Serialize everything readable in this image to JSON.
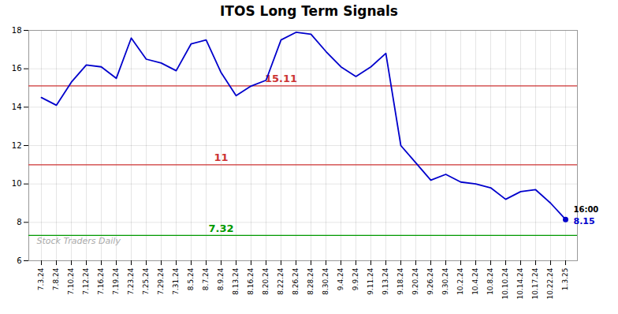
{
  "chart_data": {
    "type": "line",
    "title": "ITOS Long Term Signals",
    "categories": [
      "7.3.24",
      "7.8.24",
      "7.10.24",
      "7.12.24",
      "7.16.24",
      "7.19.24",
      "7.23.24",
      "7.25.24",
      "7.29.24",
      "7.31.24",
      "8.5.24",
      "8.7.24",
      "8.9.24",
      "8.13.24",
      "8.16.24",
      "8.20.24",
      "8.22.24",
      "8.26.24",
      "8.28.24",
      "8.30.24",
      "9.4.24",
      "9.9.24",
      "9.11.24",
      "9.13.24",
      "9.18.24",
      "9.20.24",
      "9.26.24",
      "9.30.24",
      "10.2.24",
      "10.4.24",
      "10.8.24",
      "10.10.24",
      "10.14.24",
      "10.17.24",
      "10.22.24",
      "1.3.25"
    ],
    "values": [
      14.5,
      14.1,
      15.3,
      16.2,
      16.1,
      15.5,
      17.6,
      16.5,
      16.3,
      15.9,
      17.3,
      17.5,
      15.8,
      14.6,
      15.1,
      15.4,
      17.5,
      17.9,
      17.8,
      16.9,
      16.1,
      15.6,
      16.1,
      16.8,
      12.0,
      11.1,
      10.2,
      10.5,
      10.1,
      10.0,
      9.8,
      9.2,
      9.6,
      9.7,
      9.0,
      8.15
    ],
    "color": "#0000cc",
    "ylim": [
      6,
      18
    ],
    "yticks": [
      6,
      8,
      10,
      12,
      14,
      16,
      18
    ],
    "grid": true,
    "hlines": [
      {
        "value": 15.11,
        "label": "15.11",
        "color": "#cc3333"
      },
      {
        "value": 11,
        "label": "11",
        "color": "#cc3333"
      },
      {
        "value": 7.32,
        "label": "7.32",
        "color": "#009900"
      }
    ],
    "last_annotations": [
      {
        "text": "16:00",
        "color": "#000000"
      },
      {
        "text": "8.15",
        "color": "#0000cc"
      }
    ],
    "watermark": "Stock Traders Daily"
  }
}
